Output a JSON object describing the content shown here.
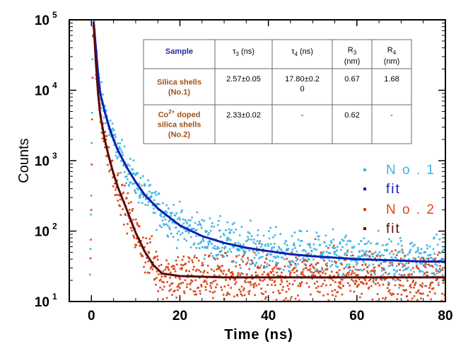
{
  "chart_data": {
    "type": "scatter",
    "xlabel": "Time (ns)",
    "ylabel": "Counts",
    "xlim": [
      -5,
      80
    ],
    "ylim": [
      10,
      100000
    ],
    "yscale": "log",
    "x_ticks": [
      "0",
      "20",
      "40",
      "60",
      "80"
    ],
    "y_ticks": [
      {
        "value": 10,
        "base": "10",
        "exp": "1"
      },
      {
        "value": 100,
        "base": "10",
        "exp": "2"
      },
      {
        "value": 1000,
        "base": "10",
        "exp": "3"
      },
      {
        "value": 10000,
        "base": "10",
        "exp": "4"
      },
      {
        "value": 100000,
        "base": "10",
        "exp": "5"
      }
    ],
    "legend_position": "right",
    "series": [
      {
        "name": "No. 1",
        "legend": "N o . 1",
        "kind": "scatter",
        "color": "#3fb4e6",
        "x": [
          -0.3,
          0,
          0.3,
          0.5,
          1,
          1.5,
          2,
          3,
          4,
          5,
          6,
          8,
          10,
          12,
          15,
          20,
          25,
          30,
          35,
          40,
          45,
          50,
          55,
          60,
          65,
          70,
          75,
          80
        ],
        "y": [
          15,
          500,
          60000,
          95000,
          40000,
          17000,
          9000,
          5000,
          3000,
          2000,
          1400,
          800,
          500,
          330,
          210,
          120,
          85,
          68,
          58,
          52,
          47,
          44,
          42,
          40,
          39,
          38,
          37,
          37
        ]
      },
      {
        "name": "fit",
        "legend": "fit",
        "kind": "line",
        "color": "#0a1fb0",
        "x": [
          0.5,
          1,
          1.5,
          2,
          3,
          4,
          5,
          6,
          8,
          10,
          12,
          15,
          20,
          25,
          30,
          35,
          40,
          45,
          50,
          55,
          60,
          65,
          70,
          75,
          80
        ],
        "y": [
          95000,
          40000,
          17000,
          9000,
          5000,
          3000,
          2000,
          1400,
          800,
          500,
          330,
          210,
          120,
          85,
          68,
          58,
          52,
          47,
          44,
          42,
          40,
          39,
          38,
          37,
          37
        ]
      },
      {
        "name": "No. 2",
        "legend": "N o . 2",
        "kind": "scatter",
        "color": "#d9481a",
        "x": [
          -0.3,
          0,
          0.3,
          0.5,
          1,
          1.5,
          2,
          3,
          4,
          5,
          6,
          8,
          10,
          12,
          14,
          16,
          20,
          30,
          40,
          50,
          60,
          70,
          80
        ],
        "y": [
          12,
          300,
          50000,
          90000,
          25000,
          9000,
          4500,
          2000,
          1100,
          650,
          420,
          200,
          95,
          52,
          33,
          25,
          23,
          22,
          22,
          22,
          22,
          22,
          22
        ]
      },
      {
        "name": "fit",
        "legend": "fit",
        "kind": "line",
        "color": "#5a0a0a",
        "x": [
          0.5,
          1,
          1.5,
          2,
          3,
          4,
          5,
          6,
          8,
          10,
          12,
          14,
          16,
          20,
          30,
          40,
          50,
          60,
          70,
          80
        ],
        "y": [
          90000,
          25000,
          9000,
          4500,
          2000,
          1100,
          650,
          420,
          200,
          95,
          52,
          33,
          25,
          23,
          22,
          22,
          22,
          22,
          22,
          22
        ]
      }
    ],
    "table": {
      "headers": [
        {
          "main": "Sample",
          "sub": "",
          "unit": "",
          "color": "#2a2a9a"
        },
        {
          "main": "τ",
          "sub": "3",
          "unit": " (ns)",
          "color": "#000000"
        },
        {
          "main": "τ",
          "sub": "4",
          "unit": " (ns)",
          "color": "#000000"
        },
        {
          "main": "R",
          "sub": "3",
          "unit": "(nm)",
          "color": "#000000"
        },
        {
          "main": "R",
          "sub": "4",
          "unit": "(nm)",
          "color": "#000000"
        }
      ],
      "rows": [
        {
          "sample": [
            "Silica shells",
            "(No.1)"
          ],
          "sample_color": "#a05018",
          "cells": [
            [
              "2.57±0.05"
            ],
            [
              "17.80±0.2",
              "0"
            ],
            [
              "0.67"
            ],
            [
              "1.68"
            ]
          ]
        },
        {
          "sample": [
            "Co2+ doped",
            "silica shells",
            "(No.2)"
          ],
          "sample_color": "#a05018",
          "cells": [
            [
              "2.33±0.02"
            ],
            [
              "-"
            ],
            [
              "0.62"
            ],
            [
              "-"
            ]
          ]
        }
      ]
    }
  }
}
